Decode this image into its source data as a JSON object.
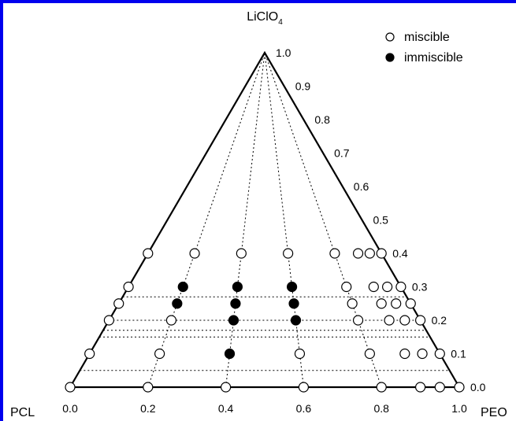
{
  "chart_data": {
    "type": "scatter",
    "subtype": "ternary",
    "apex_label_main": "LiClO",
    "apex_label_sub": "4",
    "left_label": "PCL",
    "right_label": "PEO",
    "bottom_ticks": [
      "0.0",
      "0.2",
      "0.4",
      "0.6",
      "0.8",
      "1.0"
    ],
    "right_ticks": [
      {
        "value": 0.0,
        "label": "0.0"
      },
      {
        "value": 0.1,
        "label": "0.1"
      },
      {
        "value": 0.2,
        "label": "0.2"
      },
      {
        "value": 0.3,
        "label": "0.3"
      },
      {
        "value": 0.4,
        "label": "0.4"
      },
      {
        "value": 0.5,
        "label": "0.5"
      },
      {
        "value": 0.6,
        "label": "0.6"
      },
      {
        "value": 0.7,
        "label": "0.7"
      },
      {
        "value": 0.8,
        "label": "0.8"
      },
      {
        "value": 0.9,
        "label": "0.9"
      },
      {
        "value": 1.0,
        "label": "1.0"
      }
    ],
    "legend": [
      {
        "label": "miscible",
        "marker": "open-circle"
      },
      {
        "label": "immiscible",
        "marker": "filled-circle"
      }
    ],
    "legend_position": "top-right",
    "gridlines": {
      "horizontal_licl_levels": [
        0.05,
        0.15,
        0.17,
        0.2,
        0.27
      ],
      "radial_peo_fractions": [
        0.2,
        0.4,
        0.6,
        0.8
      ]
    },
    "colors": {
      "frame": "#0000ee",
      "ink": "#000000",
      "background": "#ffffff"
    },
    "series": [
      {
        "name": "miscible",
        "points": [
          {
            "peo": 0.0,
            "licl": 0.0
          },
          {
            "peo": 0.2,
            "licl": 0.0
          },
          {
            "peo": 0.4,
            "licl": 0.0
          },
          {
            "peo": 0.6,
            "licl": 0.0
          },
          {
            "peo": 0.8,
            "licl": 0.0
          },
          {
            "peo": 0.9,
            "licl": 0.0
          },
          {
            "peo": 0.95,
            "licl": 0.0
          },
          {
            "peo": 1.0,
            "licl": 0.0
          },
          {
            "peo": 0.0,
            "licl": 0.1
          },
          {
            "peo": 0.2,
            "licl": 0.1
          },
          {
            "peo": 0.6,
            "licl": 0.1
          },
          {
            "peo": 0.8,
            "licl": 0.1
          },
          {
            "peo": 0.9,
            "licl": 0.1
          },
          {
            "peo": 0.95,
            "licl": 0.1
          },
          {
            "peo": 1.0,
            "licl": 0.1
          },
          {
            "peo": 0.0,
            "licl": 0.2
          },
          {
            "peo": 0.2,
            "licl": 0.2
          },
          {
            "peo": 0.8,
            "licl": 0.2
          },
          {
            "peo": 0.9,
            "licl": 0.2
          },
          {
            "peo": 0.95,
            "licl": 0.2
          },
          {
            "peo": 1.0,
            "licl": 0.2
          },
          {
            "peo": 0.0,
            "licl": 0.25
          },
          {
            "peo": 0.8,
            "licl": 0.25
          },
          {
            "peo": 0.9,
            "licl": 0.25
          },
          {
            "peo": 0.95,
            "licl": 0.25
          },
          {
            "peo": 1.0,
            "licl": 0.25
          },
          {
            "peo": 0.0,
            "licl": 0.3
          },
          {
            "peo": 0.8,
            "licl": 0.3
          },
          {
            "peo": 0.9,
            "licl": 0.3
          },
          {
            "peo": 0.95,
            "licl": 0.3
          },
          {
            "peo": 1.0,
            "licl": 0.3
          },
          {
            "peo": 0.0,
            "licl": 0.4
          },
          {
            "peo": 0.2,
            "licl": 0.4
          },
          {
            "peo": 0.4,
            "licl": 0.4
          },
          {
            "peo": 0.6,
            "licl": 0.4
          },
          {
            "peo": 0.8,
            "licl": 0.4
          },
          {
            "peo": 0.9,
            "licl": 0.4
          },
          {
            "peo": 0.95,
            "licl": 0.4
          },
          {
            "peo": 1.0,
            "licl": 0.4
          }
        ]
      },
      {
        "name": "immiscible",
        "points": [
          {
            "peo": 0.4,
            "licl": 0.1
          },
          {
            "peo": 0.4,
            "licl": 0.2
          },
          {
            "peo": 0.6,
            "licl": 0.2
          },
          {
            "peo": 0.2,
            "licl": 0.25
          },
          {
            "peo": 0.4,
            "licl": 0.25
          },
          {
            "peo": 0.6,
            "licl": 0.25
          },
          {
            "peo": 0.2,
            "licl": 0.3
          },
          {
            "peo": 0.4,
            "licl": 0.3
          },
          {
            "peo": 0.6,
            "licl": 0.3
          }
        ]
      }
    ]
  }
}
